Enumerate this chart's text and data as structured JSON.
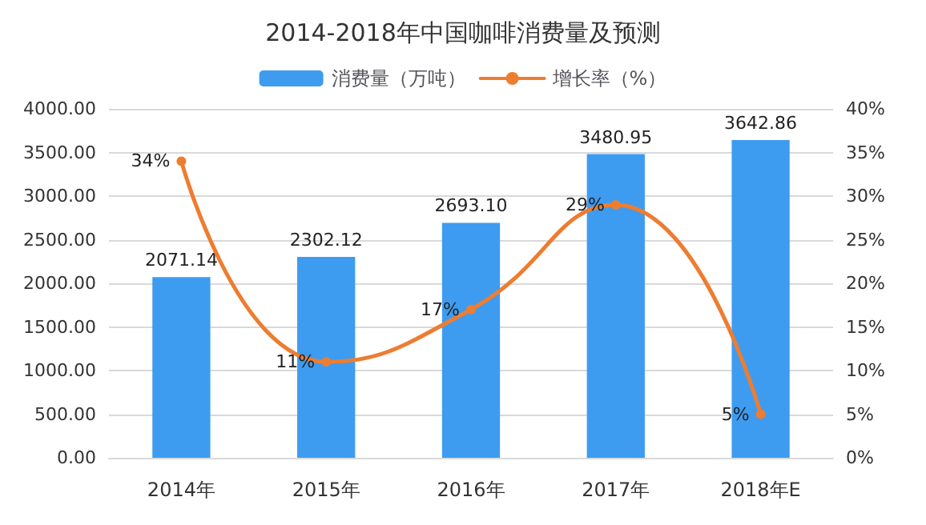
{
  "chart_data": {
    "type": "bar",
    "title": "2014-2018年中国咖啡消费量及预测",
    "categories": [
      "2014年",
      "2015年",
      "2016年",
      "2017年",
      "2018年E"
    ],
    "series": [
      {
        "name": "消费量（万吨）",
        "color": "#3d9cf0",
        "values": [
          2071.14,
          2302.12,
          2693.1,
          3480.95,
          3642.86
        ],
        "value_labels": [
          "2071.14",
          "2302.12",
          "2693.10",
          "3480.95",
          "3642.86"
        ]
      },
      {
        "name": "增长率（%）",
        "type": "line",
        "axis": "y2",
        "color": "#ed7d31",
        "values": [
          34,
          11,
          17,
          29,
          5
        ],
        "value_labels": [
          "34%",
          "11%",
          "17%",
          "29%",
          "5%"
        ]
      }
    ],
    "ylim": [
      0,
      4000
    ],
    "yticks": [
      {
        "value": 0,
        "label": "0.00"
      },
      {
        "value": 500,
        "label": "500.00"
      },
      {
        "value": 1000,
        "label": "1000.00"
      },
      {
        "value": 1500,
        "label": "1500.00"
      },
      {
        "value": 2000,
        "label": "2000.00"
      },
      {
        "value": 2500,
        "label": "2500.00"
      },
      {
        "value": 3000,
        "label": "3000.00"
      },
      {
        "value": 3500,
        "label": "3500.00"
      },
      {
        "value": 4000,
        "label": "4000.00"
      }
    ],
    "y2lim": [
      0,
      40
    ],
    "y2ticks": [
      {
        "value": 0,
        "label": "0%"
      },
      {
        "value": 5,
        "label": "5%"
      },
      {
        "value": 10,
        "label": "10%"
      },
      {
        "value": 15,
        "label": "15%"
      },
      {
        "value": 20,
        "label": "20%"
      },
      {
        "value": 25,
        "label": "25%"
      },
      {
        "value": 30,
        "label": "30%"
      },
      {
        "value": 35,
        "label": "35%"
      },
      {
        "value": 40,
        "label": "40%"
      }
    ],
    "grid": "y",
    "legend": "top",
    "marker": "circle",
    "line_style": "solid"
  }
}
